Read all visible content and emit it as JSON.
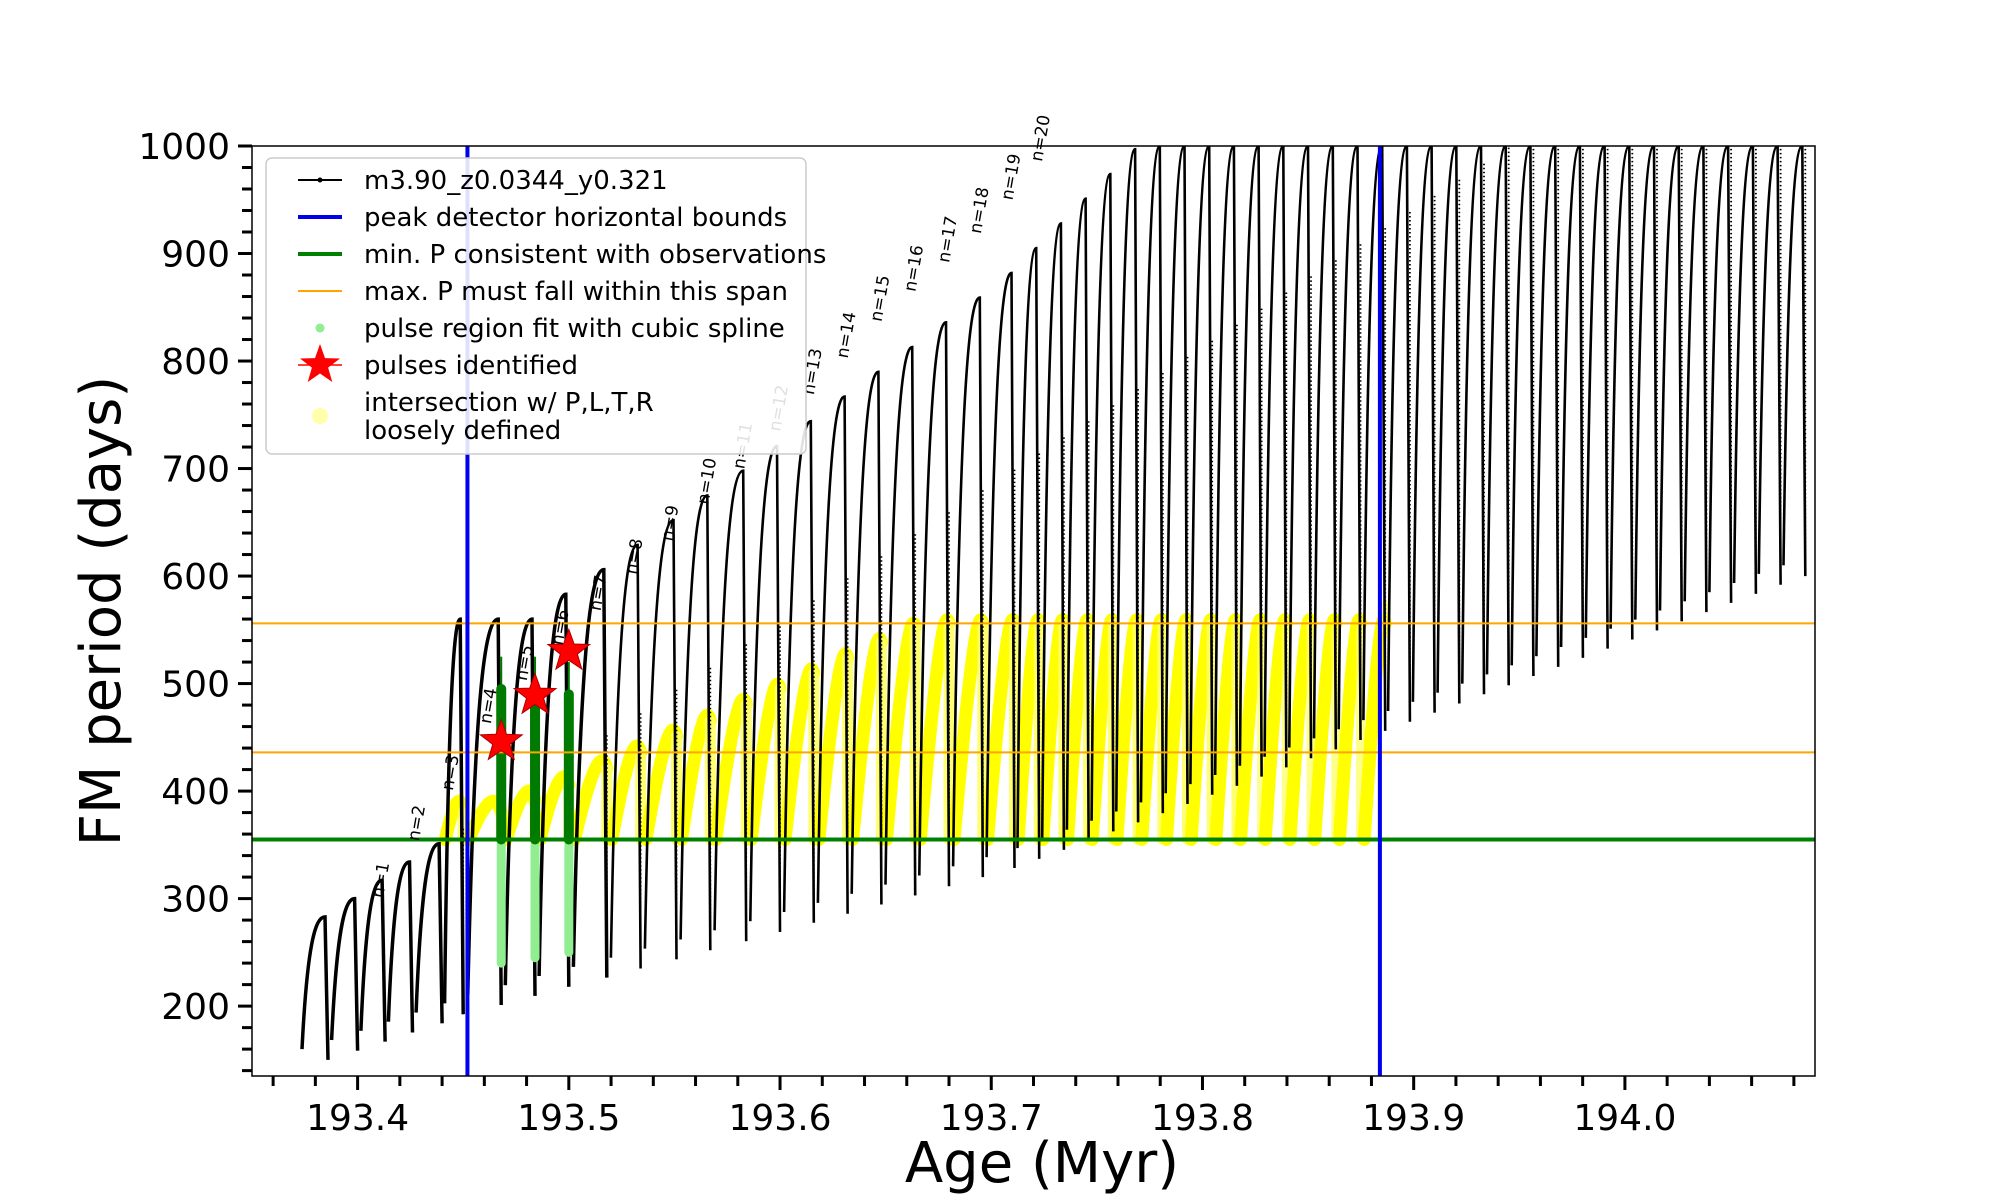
{
  "chart_data": {
    "type": "line",
    "title": "",
    "xlabel": "Age (Myr)",
    "ylabel": "FM period (days)",
    "xlim": [
      193.35,
      194.09
    ],
    "ylim": [
      135,
      1000
    ],
    "xticks": [
      "193.4",
      "193.5",
      "193.6",
      "193.7",
      "193.8",
      "193.9",
      "194.0"
    ],
    "yticks": [
      "200",
      "300",
      "400",
      "500",
      "600",
      "700",
      "800",
      "900",
      "1000"
    ],
    "legend_position": "top-left",
    "legend": [
      {
        "label": "m3.90_z0.0344_y0.321",
        "style": "black-line-dots",
        "color": "#000000"
      },
      {
        "label": "peak detector horizontal bounds",
        "style": "line",
        "color": "#0000ee"
      },
      {
        "label": "min. P consistent with observations",
        "style": "line",
        "color": "#008000"
      },
      {
        "label": "max. P must fall within this span",
        "style": "thin-line",
        "color": "#ffa500"
      },
      {
        "label": "pulse region fit with cubic spline",
        "style": "dot",
        "color": "#90ee90"
      },
      {
        "label": "pulses identified",
        "style": "star",
        "color": "#ff0000"
      },
      {
        "label": "intersection w/ P,L,T,R loosely defined",
        "style": "big-dot",
        "color": "#ffffaa"
      }
    ],
    "horizontal_lines": [
      {
        "name": "min-period",
        "y": 355,
        "color": "#008000"
      },
      {
        "name": "max-period-lower",
        "y": 436,
        "color": "#ffa500"
      },
      {
        "name": "max-period-upper",
        "y": 556,
        "color": "#ffa500"
      }
    ],
    "vertical_lines": [
      {
        "name": "peak-bound-left",
        "x": 193.452,
        "color": "#0000ee"
      },
      {
        "name": "peak-bound-right",
        "x": 193.884,
        "color": "#0000ee"
      }
    ],
    "envelope": {
      "pulse_count": 54,
      "x_first": 193.386,
      "x_last": 193.999,
      "peak_ages": [
        193.386,
        193.4,
        193.413,
        193.426,
        193.44,
        193.45,
        193.468,
        193.484,
        193.5,
        193.518,
        193.534,
        193.551,
        193.567,
        193.584,
        193.6,
        193.616,
        193.632,
        193.648,
        193.664,
        193.68,
        193.696,
        193.711
      ],
      "pulse_numbers": [
        "n=1",
        "n=2",
        "n=3",
        "n=4",
        "n=5",
        "n=6",
        "n=7",
        "n=8",
        "n=9",
        "n=10",
        "n=11",
        "n=12",
        "n=13",
        "n=14",
        "n=15",
        "n=16",
        "n=17",
        "n=18",
        "n=19",
        "n=20"
      ],
      "pulse_number_ages": [
        193.412,
        193.429,
        193.445,
        193.463,
        193.48,
        193.497,
        193.515,
        193.532,
        193.549,
        193.566,
        193.583,
        193.6,
        193.616,
        193.632,
        193.648,
        193.664,
        193.68,
        193.695,
        193.71,
        193.724
      ],
      "pulse_number_periods": [
        300,
        353,
        400,
        462,
        502,
        535,
        567,
        601,
        632,
        666,
        699,
        734,
        768,
        802,
        836,
        864,
        891,
        918,
        949,
        985
      ],
      "greyed_labels": [
        "n=11",
        "n=12"
      ]
    },
    "pulses_identified": [
      {
        "label": "n=4",
        "age": 193.468,
        "period": 446
      },
      {
        "label": "n=5",
        "age": 193.484,
        "period": 489
      },
      {
        "label": "n=6",
        "age": 193.5,
        "period": 530
      }
    ],
    "cubic_spline_regions": [
      {
        "age": 193.468,
        "period_min": 240,
        "period_max": 525
      },
      {
        "age": 193.484,
        "period_min": 245,
        "period_max": 525
      },
      {
        "age": 193.5,
        "period_min": 250,
        "period_max": 520
      }
    ]
  }
}
